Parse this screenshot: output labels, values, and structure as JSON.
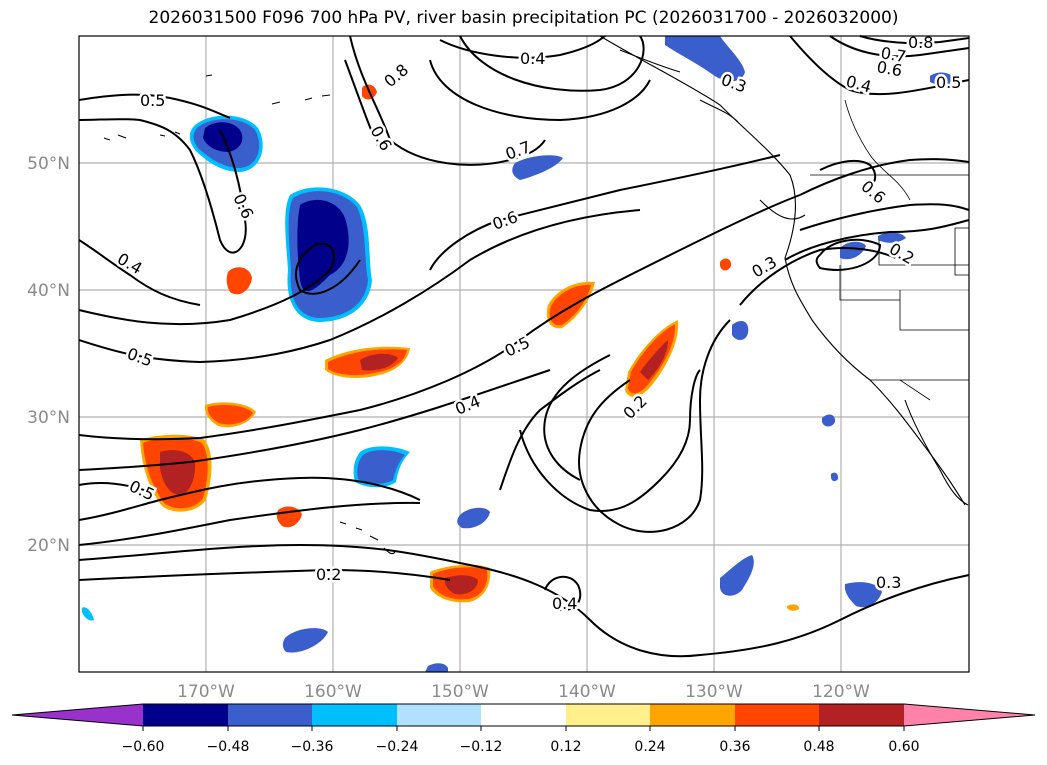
{
  "title": "2026031500 F096 700 hPa PV, river basin precipitation PC (2026031700 - 2026032000)",
  "map": {
    "lat_labels": [
      "50°N",
      "40°N",
      "30°N",
      "20°N"
    ],
    "lon_labels": [
      "170°W",
      "160°W",
      "150°W",
      "140°W",
      "130°W",
      "120°W"
    ],
    "contour_labels": [
      "0.5",
      "0.6",
      "0.4",
      "0.5",
      "0.5",
      "0.8",
      "0.6",
      "0.4",
      "0.7",
      "0.6",
      "0.5",
      "0.4",
      "0.2",
      "0.2",
      "0.4",
      "0.3",
      "0.7",
      "0.8",
      "0.6",
      "0.4",
      "0.5",
      "0.6",
      "0.2",
      "0.3",
      "0.3"
    ]
  },
  "colorbar": {
    "colors": [
      "#9932cc",
      "#00008b",
      "#3a5fcd",
      "#00bfff",
      "#b0e2ff",
      "#ffffff",
      "#fff08c",
      "#ffa500",
      "#ff4500",
      "#b22222",
      "#ff82ab"
    ],
    "tick_labels": [
      "−0.60",
      "−0.48",
      "−0.36",
      "−0.24",
      "−0.12",
      "0.12",
      "0.24",
      "0.36",
      "0.48",
      "0.60"
    ]
  }
}
